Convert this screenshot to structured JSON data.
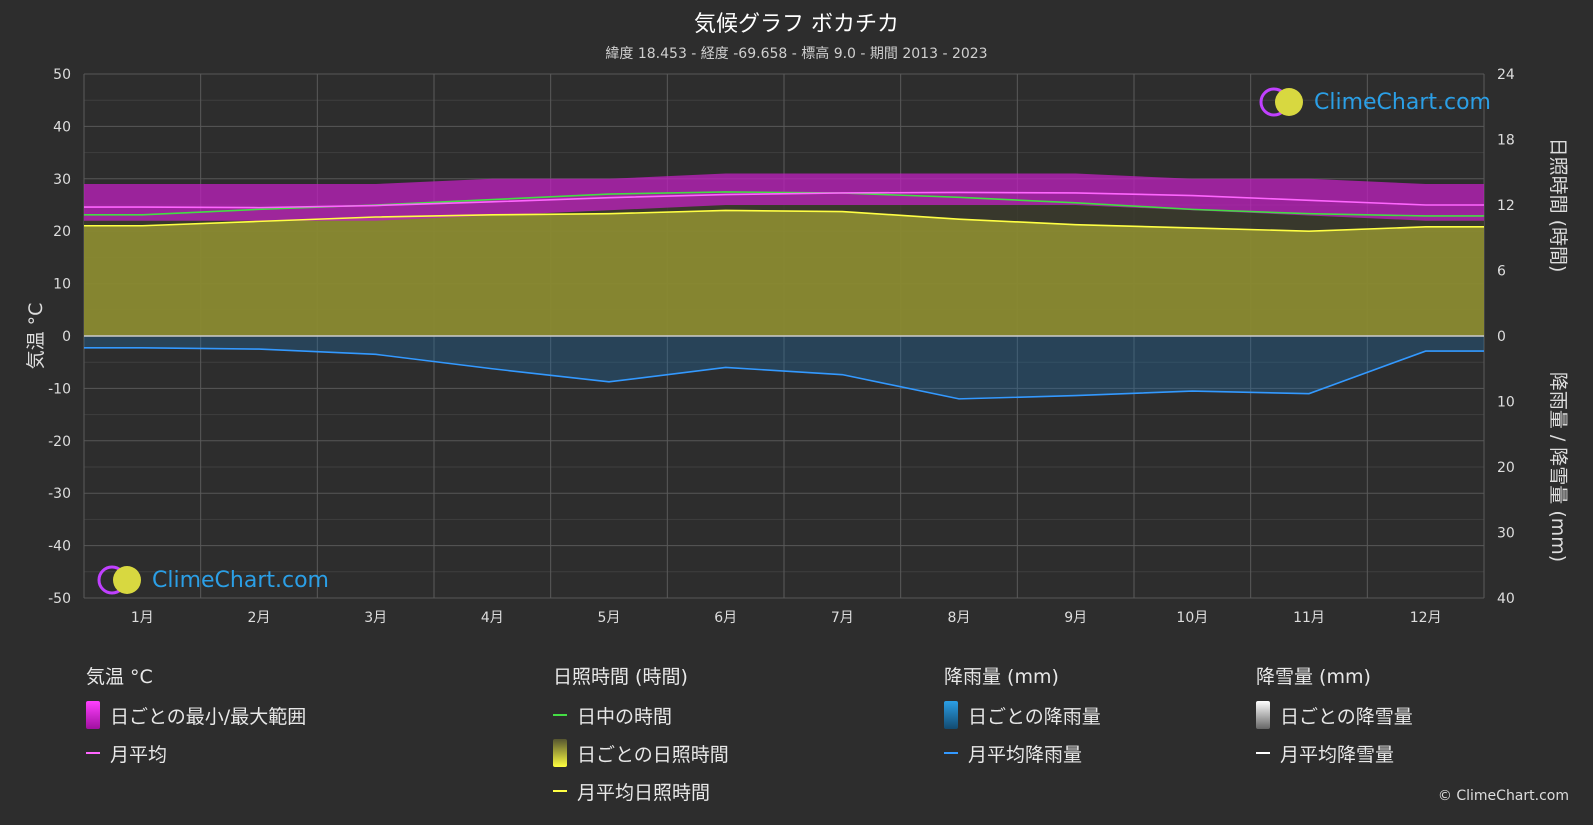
{
  "title": "気候グラフ ボカチカ",
  "subtitle": "緯度 18.453 - 経度 -69.658 - 標高 9.0 - 期間 2013 - 2023",
  "logo_text": "ClimeChart.com",
  "copyright": "© ClimeChart.com",
  "chart_data": {
    "type": "area",
    "categories": [
      "1月",
      "2月",
      "3月",
      "4月",
      "5月",
      "6月",
      "7月",
      "8月",
      "9月",
      "10月",
      "11月",
      "12月"
    ],
    "y_left": {
      "label": "気温 °C",
      "range": [
        -50,
        50
      ],
      "ticks": [
        50,
        40,
        30,
        20,
        10,
        0,
        -10,
        -20,
        -30,
        -40,
        -50
      ]
    },
    "y_right_top": {
      "label": "日照時間 (時間)",
      "range": [
        0,
        24
      ],
      "ticks": [
        24,
        18,
        12,
        6,
        0
      ]
    },
    "y_right_bottom": {
      "label": "降雨量 / 降雪量 (mm)",
      "range": [
        0,
        40
      ],
      "ticks": [
        0,
        10,
        20,
        30,
        40
      ]
    },
    "series": [
      {
        "name": "日中の時間",
        "unit": "時間",
        "color": "#44dd44",
        "values": [
          11.1,
          11.6,
          12.0,
          12.5,
          13.0,
          13.2,
          13.1,
          12.7,
          12.2,
          11.6,
          11.2,
          11.0
        ]
      },
      {
        "name": "月平均日照時間",
        "unit": "時間",
        "color": "#ffff44",
        "values": [
          10.1,
          10.5,
          10.9,
          11.1,
          11.2,
          11.5,
          11.4,
          10.7,
          10.2,
          9.9,
          9.6,
          10.0
        ]
      },
      {
        "name": "月平均",
        "unit": "°C",
        "color": "#ff66ff",
        "values": [
          24.6,
          24.5,
          24.9,
          25.6,
          26.4,
          27.0,
          27.3,
          27.4,
          27.3,
          26.8,
          25.9,
          25.0
        ]
      },
      {
        "name": "月平均降雨量",
        "unit": "mm",
        "color": "#3399ff",
        "values": [
          1.8,
          2.0,
          2.8,
          5.0,
          7.0,
          4.8,
          5.9,
          9.6,
          9.1,
          8.4,
          8.8,
          2.3
        ]
      }
    ],
    "temp_range_daily": {
      "min": [
        22,
        22,
        22,
        23,
        24,
        25,
        25,
        25,
        25,
        24,
        23,
        22
      ],
      "max": [
        29,
        29,
        29,
        30,
        30,
        31,
        31,
        31,
        31,
        30,
        30,
        29
      ]
    }
  },
  "legend": {
    "temp": {
      "heading": "気温 °C",
      "items": [
        "日ごとの最小/最大範囲",
        "月平均"
      ]
    },
    "sun": {
      "heading": "日照時間 (時間)",
      "items": [
        "日中の時間",
        "日ごとの日照時間",
        "月平均日照時間"
      ]
    },
    "rain": {
      "heading": "降雨量 (mm)",
      "items": [
        "日ごとの降雨量",
        "月平均降雨量"
      ]
    },
    "snow": {
      "heading": "降雪量 (mm)",
      "items": [
        "日ごとの降雪量",
        "月平均降雪量"
      ]
    }
  },
  "colors": {
    "background": "#2d2d2d",
    "grid": "#555555",
    "temp_range": "#c020c0",
    "sunshine_fill": "#8a8a30",
    "rain_bar": "#1f6ea8"
  }
}
